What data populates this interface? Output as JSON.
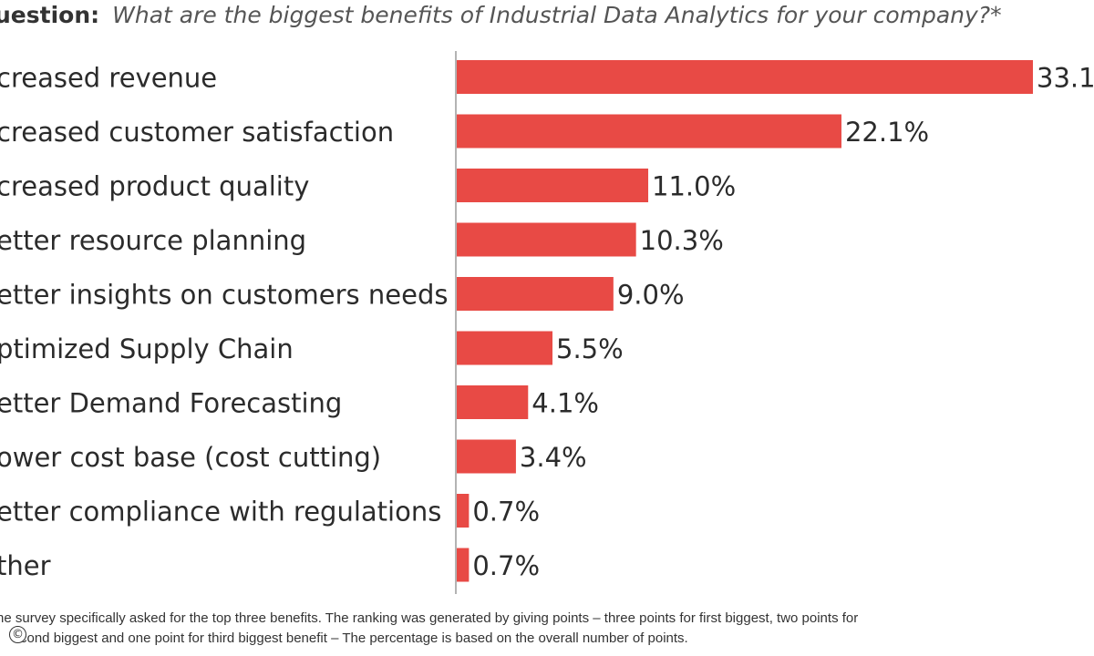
{
  "header": {
    "question_label": "uestion:",
    "question_text": "What are the biggest benefits of Industrial Data Analytics for your company?*"
  },
  "colors": {
    "bar": "#e84a45",
    "axis": "#9a9a9a",
    "text": "#2b2b2b"
  },
  "chart_data": {
    "type": "bar",
    "orientation": "horizontal",
    "categories": [
      "creased revenue",
      "creased customer satisfaction",
      "creased product quality",
      "etter resource planning",
      "etter insights on customers needs",
      "ptimized Supply Chain",
      "etter Demand Forecasting",
      "ower cost base (cost cutting)",
      "etter compliance with  regulations",
      "ther"
    ],
    "values": [
      33.1,
      22.1,
      11.0,
      10.3,
      9.0,
      5.5,
      4.1,
      3.4,
      0.7,
      0.7
    ],
    "value_labels": [
      "33.1",
      "22.1%",
      "11.0%",
      "10.3%",
      "9.0%",
      "5.5%",
      "4.1%",
      "3.4%",
      "0.7%",
      "0.7%"
    ],
    "xlim": [
      0,
      33.1
    ],
    "grid": false,
    "legend": "none"
  },
  "footnote": {
    "line1": "he survey specifically asked for the top three benefits. The ranking was generated by giving points – three points for first biggest, two points for",
    "line2": "cond biggest and one point for third biggest benefit – The percentage is based on the overall number of points."
  },
  "copyright_icon": "©"
}
